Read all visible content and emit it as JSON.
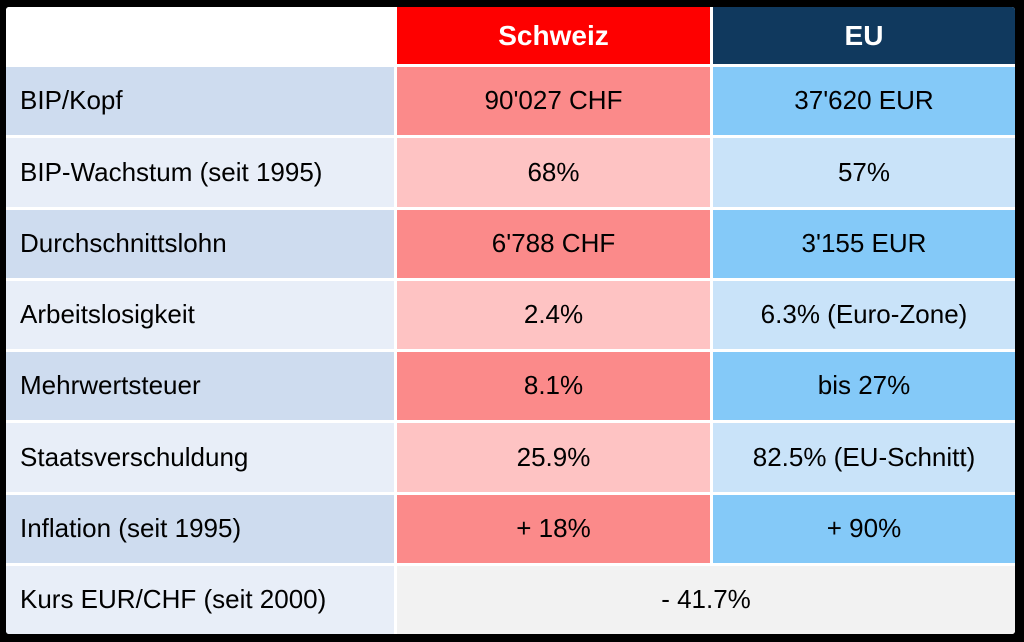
{
  "table": {
    "columns": [
      {
        "label": ""
      },
      {
        "label": "Schweiz"
      },
      {
        "label": "EU"
      }
    ],
    "rows": [
      {
        "label": "BIP/Kopf",
        "schweiz": "90'027 CHF",
        "eu": "37'620 EUR"
      },
      {
        "label": "BIP-Wachstum (seit 1995)",
        "schweiz": "68%",
        "eu": "57%"
      },
      {
        "label": "Durchschnittslohn",
        "schweiz": "6'788 CHF",
        "eu": "3'155 EUR"
      },
      {
        "label": "Arbeitslosigkeit",
        "schweiz": "2.4%",
        "eu": "6.3% (Euro-Zone)"
      },
      {
        "label": "Mehrwertsteuer",
        "schweiz": "8.1%",
        "eu": "bis 27%"
      },
      {
        "label": "Staatsverschuldung",
        "schweiz": "25.9%",
        "eu": "82.5% (EU-Schnitt)"
      },
      {
        "label": "Inflation (seit 1995)",
        "schweiz": "+ 18%",
        "eu": "+ 90%"
      },
      {
        "label": "Kurs EUR/CHF (seit 2000)",
        "merged": "- 41.7%"
      }
    ]
  },
  "colors": {
    "frame": "#000000",
    "gridline": "#ffffff",
    "red": "#fe0000",
    "navy": "#10395e",
    "headerText": "#ffffff",
    "text": "#000000",
    "labelDark": "#cedcef",
    "labelLight": "#e8eef8",
    "schweizDark": "#fb8a8a",
    "schweizLight": "#fec3c3",
    "euDark": "#84c9f8",
    "euLight": "#c9e3f9",
    "mergedGray": "#f2f2f2"
  }
}
